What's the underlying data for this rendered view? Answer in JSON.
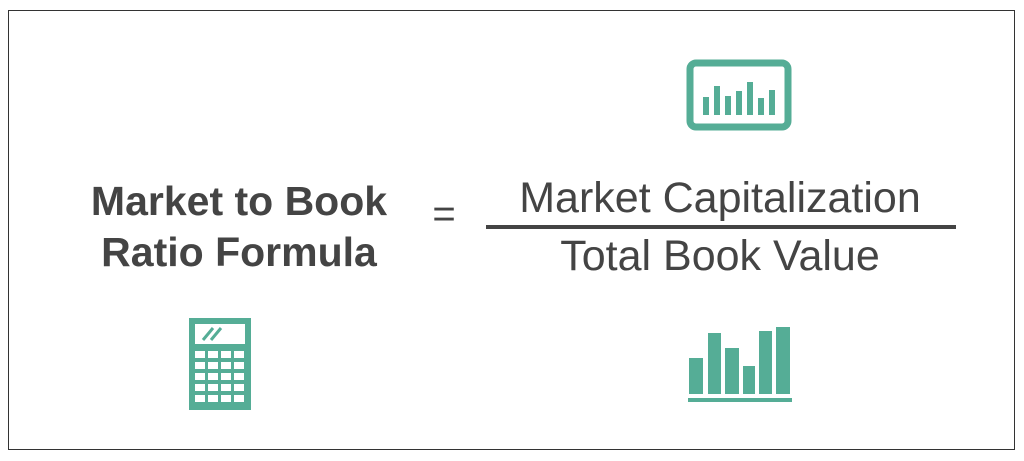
{
  "formula": {
    "lhs_line1": "Market to Book",
    "lhs_line2": "Ratio Formula",
    "equals": "=",
    "numerator": "Market Capitalization",
    "denominator": "Total Book Value"
  },
  "icons": {
    "top": "monitor-chart-icon",
    "bottom_left": "calculator-icon",
    "bottom_right": "bar-chart-icon"
  },
  "colors": {
    "accent": "#55ad96",
    "text": "#444444",
    "border": "#333333"
  }
}
